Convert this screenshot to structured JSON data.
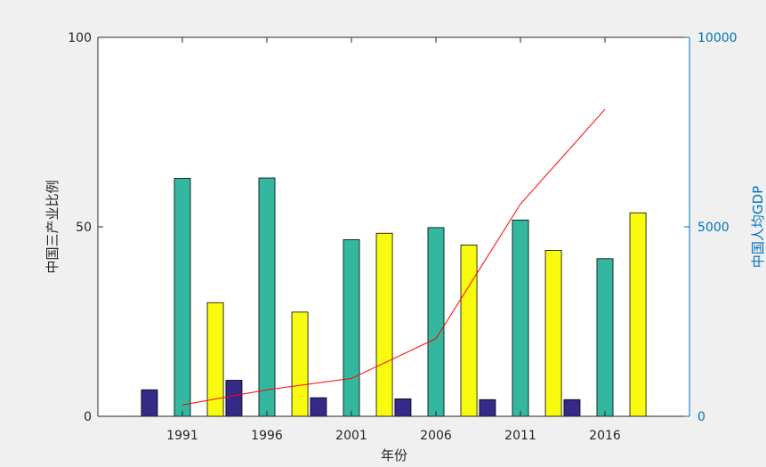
{
  "chart_data": {
    "type": "bar",
    "categories": [
      "1991",
      "1996",
      "2001",
      "2006",
      "2011",
      "2016"
    ],
    "series": [
      {
        "values": [
          7.0,
          9.5,
          4.9,
          4.6,
          4.4,
          4.4
        ],
        "color": "#352a87",
        "axis": "left"
      },
      {
        "values": [
          62.8,
          62.9,
          46.6,
          49.8,
          51.8,
          41.6
        ],
        "color": "#33b89f",
        "axis": "left"
      },
      {
        "values": [
          30.0,
          27.5,
          48.3,
          45.2,
          43.8,
          53.7
        ],
        "color": "#f9fb0e",
        "axis": "left"
      },
      {
        "type": "line",
        "values": [
          300,
          700,
          1000,
          2050,
          5600,
          8100
        ],
        "color": "#ff0000",
        "axis": "right"
      }
    ],
    "xlabel": "年份",
    "ylabel": "中国三产业比例",
    "ylabel_right": "中国人均GDP",
    "ylim": [
      0,
      100
    ],
    "ylim_right": [
      0,
      10000
    ],
    "yticks": [
      0,
      50,
      100
    ],
    "yticks_right": [
      0,
      5000,
      10000
    ],
    "xlim": [
      1986,
      2021
    ],
    "grid": false,
    "legend": "none"
  }
}
